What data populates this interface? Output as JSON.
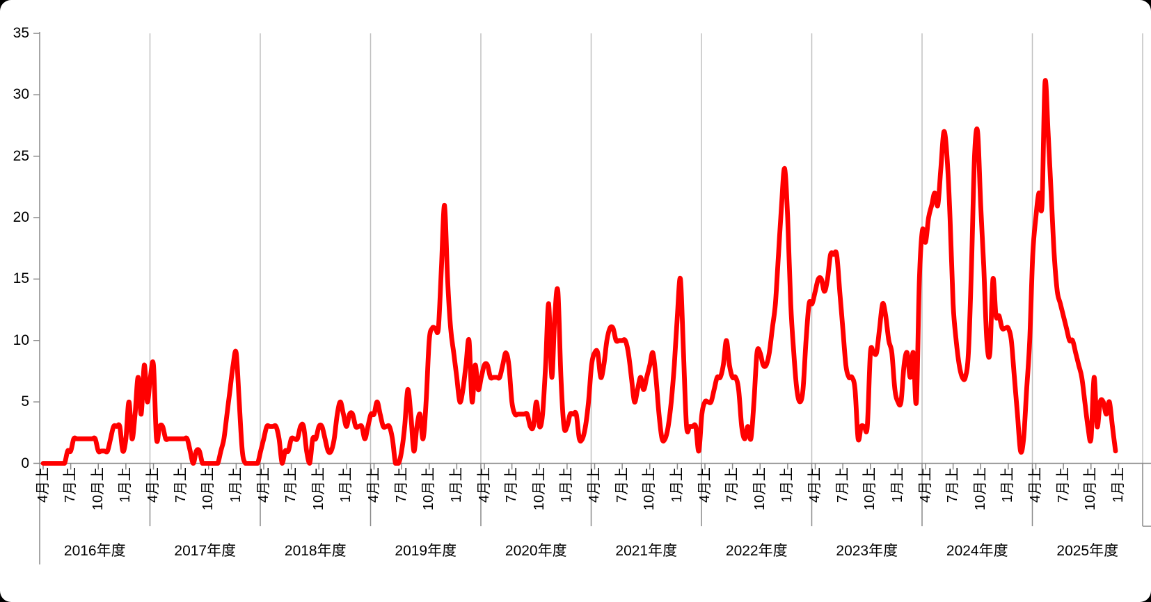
{
  "chart_data": {
    "type": "line",
    "title": "",
    "xlabel": "",
    "ylabel": "",
    "ylim": [
      0,
      35
    ],
    "y_ticks": [
      0,
      5,
      10,
      15,
      20,
      25,
      30,
      35
    ],
    "grid": "vertical-year-boundaries",
    "legend": "none",
    "series_color": "#FF0000",
    "x_quarter_tick_labels": [
      "4月上",
      "7月上",
      "10月上",
      "1月上"
    ],
    "points_per_year": 36,
    "years": [
      {
        "label": "2016年度",
        "values": [
          0,
          0,
          0,
          0,
          0,
          0,
          0,
          0,
          1,
          1,
          2,
          2,
          2,
          2,
          2,
          2,
          2,
          2,
          1,
          1,
          1,
          1,
          2,
          3,
          3,
          3,
          1,
          2,
          5,
          2,
          4,
          7,
          4,
          8,
          5,
          7
        ]
      },
      {
        "label": "2017年度",
        "values": [
          8,
          2,
          3,
          3,
          2,
          2,
          2,
          2,
          2,
          2,
          2,
          2,
          1,
          0,
          1,
          1,
          0,
          0,
          0,
          0,
          0,
          0,
          1,
          2,
          4,
          6,
          8,
          9,
          5,
          1,
          0,
          0,
          0,
          0,
          0,
          1
        ]
      },
      {
        "label": "2018年度",
        "values": [
          2,
          3,
          3,
          3,
          3,
          2,
          0,
          1,
          1,
          2,
          2,
          2,
          3,
          3,
          1,
          0,
          2,
          2,
          3,
          3,
          2,
          1,
          1,
          2,
          4,
          5,
          4,
          3,
          4,
          4,
          3,
          3,
          3,
          2,
          3,
          4
        ]
      },
      {
        "label": "2019年度",
        "values": [
          4,
          5,
          4,
          3,
          3,
          3,
          2,
          0,
          0,
          1,
          3,
          6,
          4,
          1,
          3,
          4,
          2,
          5,
          10,
          11,
          11,
          11,
          16,
          21,
          15,
          11,
          9,
          7,
          5,
          6,
          8,
          10,
          5,
          8,
          6,
          7
        ]
      },
      {
        "label": "2020年度",
        "values": [
          8,
          8,
          7,
          7,
          7,
          7,
          8,
          9,
          8,
          5,
          4,
          4,
          4,
          4,
          4,
          3,
          3,
          5,
          3,
          4,
          8,
          13,
          7,
          12,
          14,
          7,
          3,
          3,
          4,
          4,
          4,
          2,
          2,
          3,
          5,
          8
        ]
      },
      {
        "label": "2021年度",
        "values": [
          9,
          9,
          7,
          8,
          10,
          11,
          11,
          10,
          10,
          10,
          10,
          9,
          7,
          5,
          6,
          7,
          6,
          7,
          8,
          9,
          7,
          4,
          2,
          2,
          3,
          5,
          8,
          12,
          15,
          9,
          3,
          3,
          3,
          3,
          1,
          4
        ]
      },
      {
        "label": "2022年度",
        "values": [
          5,
          5,
          5,
          6,
          7,
          7,
          8,
          10,
          8,
          7,
          7,
          6,
          3,
          2,
          3,
          2,
          5,
          9,
          9,
          8,
          8,
          9,
          11,
          13,
          17,
          21,
          24,
          20,
          13,
          9,
          6,
          5,
          6,
          10,
          13,
          13
        ]
      },
      {
        "label": "2023年度",
        "values": [
          14,
          15,
          15,
          14,
          15,
          17,
          17,
          17,
          14,
          11,
          8,
          7,
          7,
          6,
          2,
          3,
          3,
          3,
          9,
          9,
          9,
          11,
          13,
          12,
          10,
          9,
          6,
          5,
          5,
          8,
          9,
          7,
          9,
          5,
          15,
          19
        ]
      },
      {
        "label": "2024年度",
        "values": [
          18,
          20,
          21,
          22,
          21,
          24,
          27,
          25,
          20,
          13,
          10,
          8,
          7,
          7,
          9,
          16,
          25,
          27,
          21,
          16,
          10,
          9,
          15,
          12,
          12,
          11,
          11,
          11,
          10,
          7,
          4,
          1,
          2,
          6,
          10,
          17
        ]
      },
      {
        "label": "2025年度",
        "values": [
          20,
          22,
          21,
          31,
          27,
          22,
          17,
          14,
          13,
          12,
          11,
          10,
          10,
          9,
          8,
          7,
          5,
          3,
          2,
          7,
          3,
          5,
          5,
          4,
          5,
          3,
          1
        ]
      }
    ]
  },
  "colors": {
    "background": "#FFFFFF",
    "frame_corners": "#000000",
    "gridline": "#C0C0C0",
    "axis": "#898989",
    "text": "#000000",
    "line": "#FF0000"
  }
}
